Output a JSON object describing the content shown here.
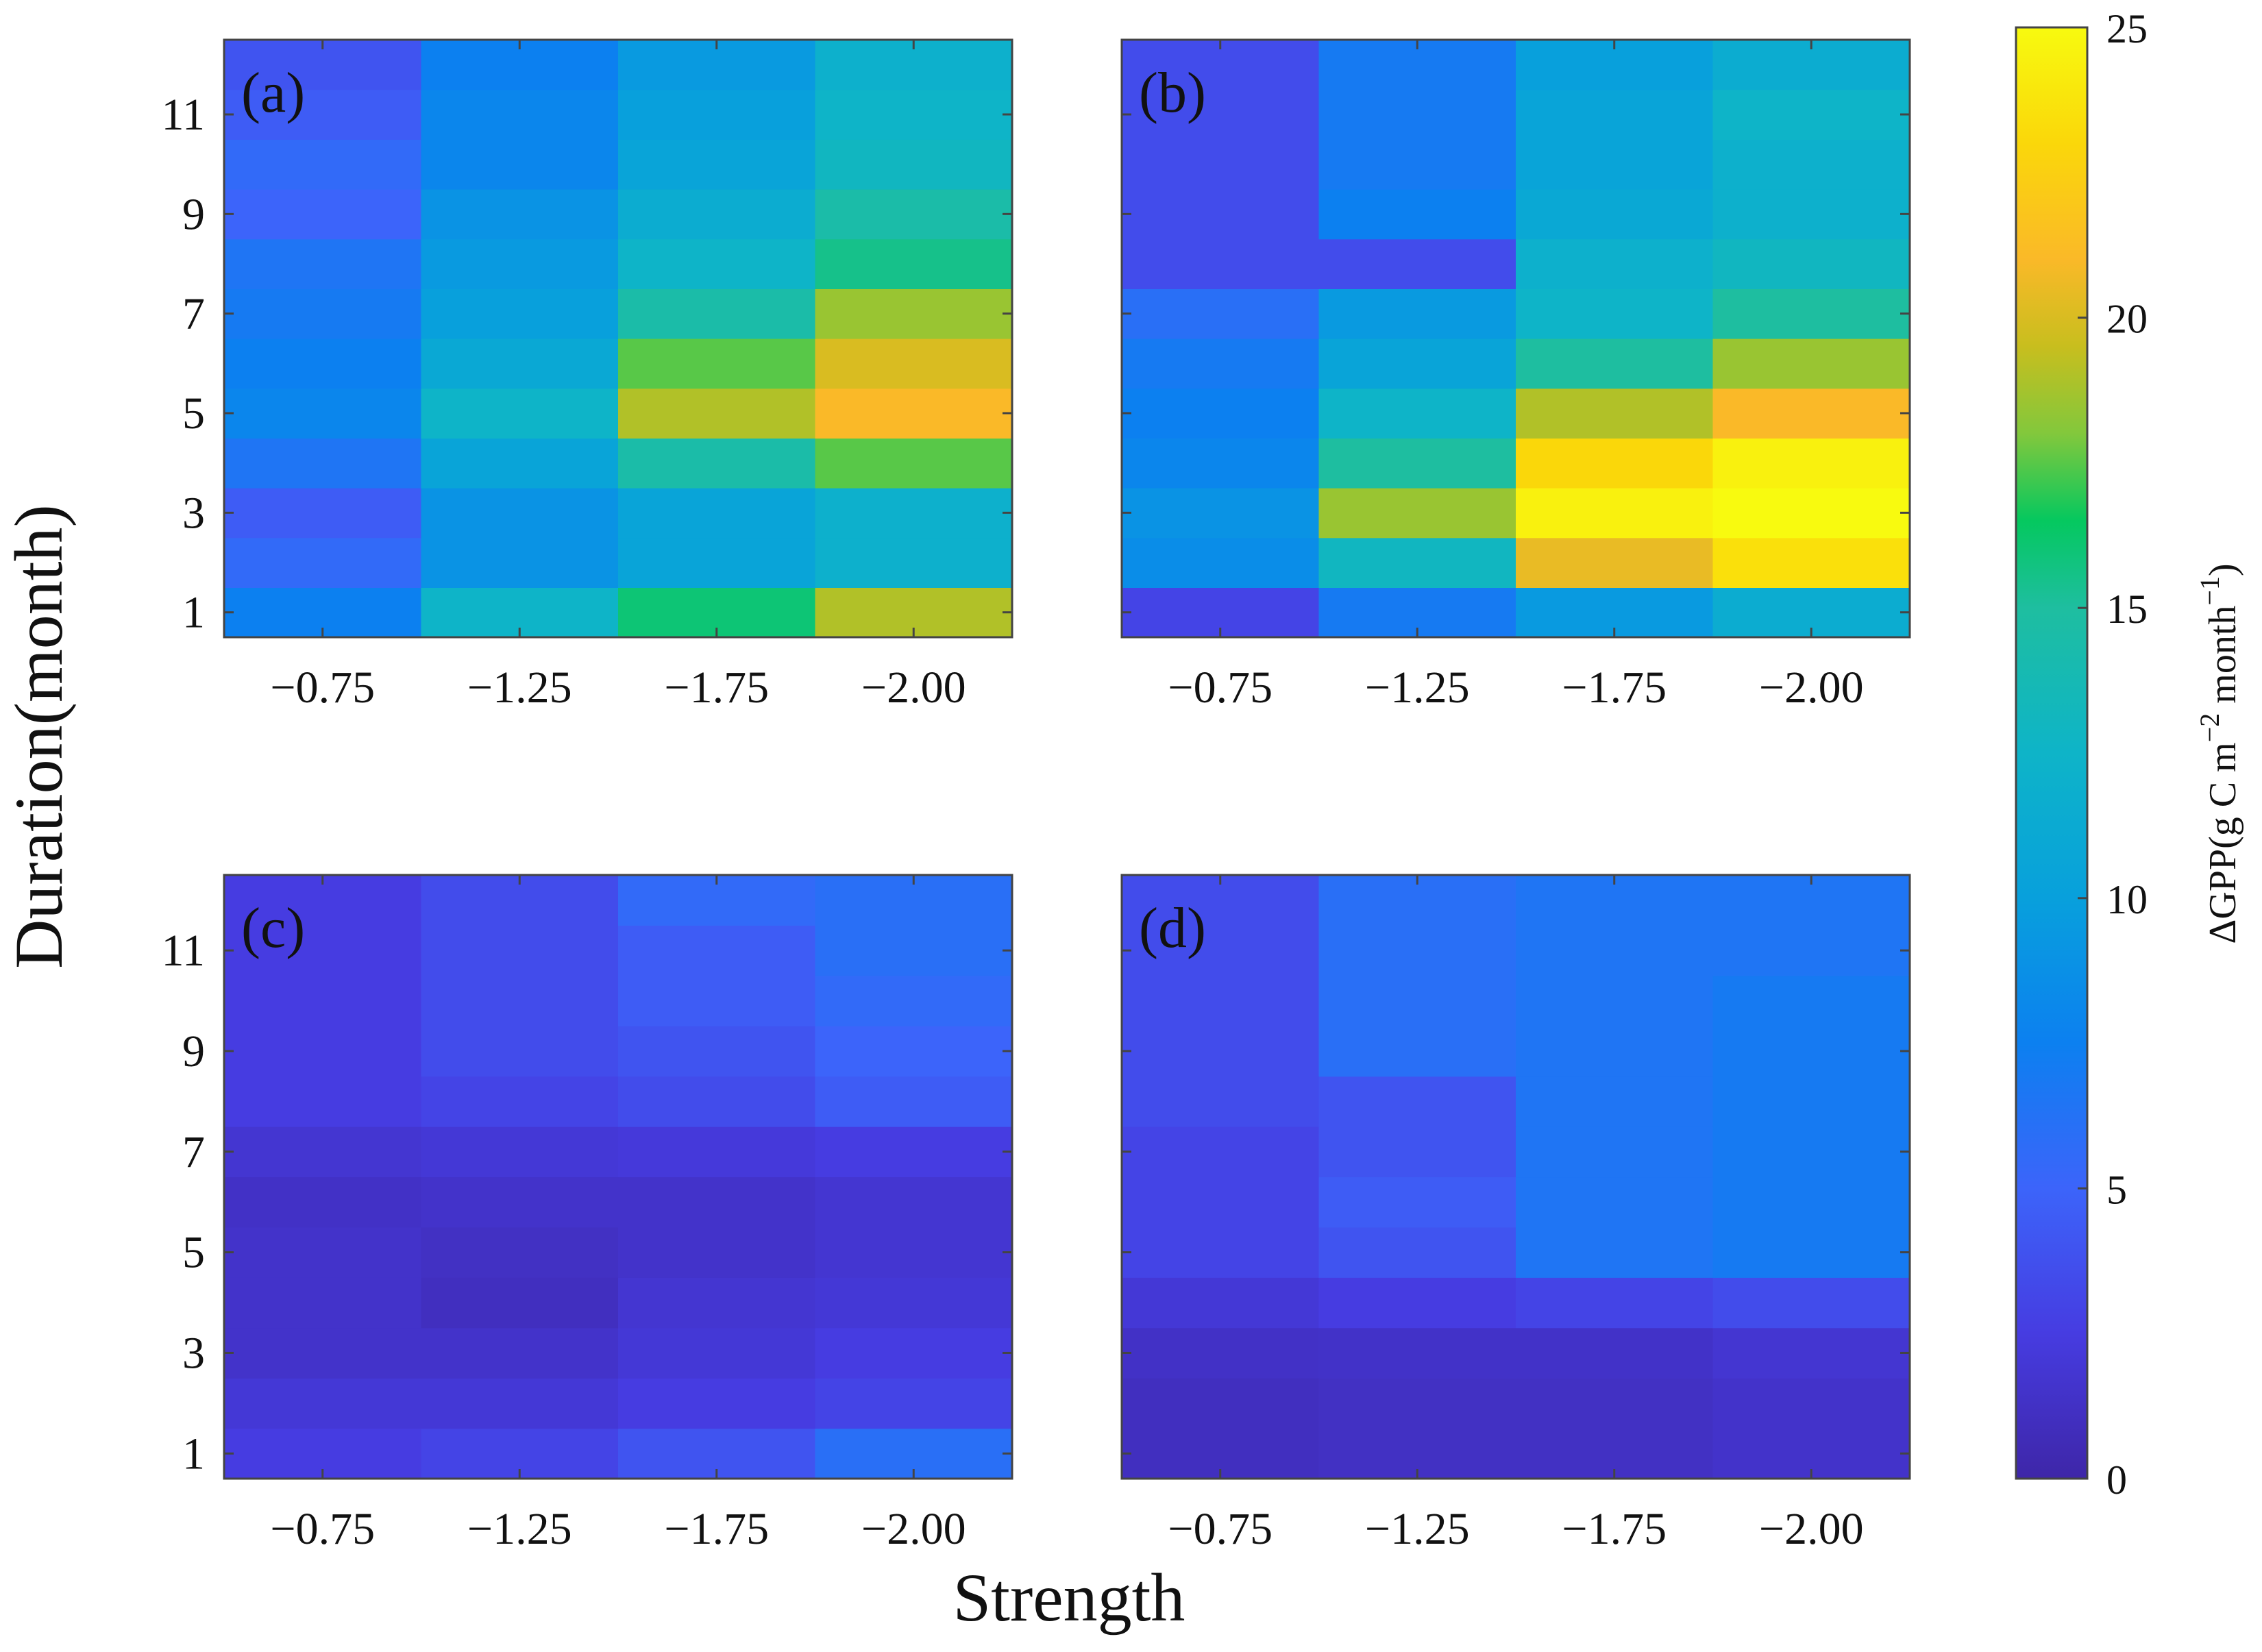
{
  "chart_data": {
    "type": "heatmap",
    "xlabel": "Strength",
    "ylabel": "Duration(month)",
    "x_categories": [
      "−0.75",
      "−1.25",
      "−1.75",
      "−2.00"
    ],
    "y_values": [
      1,
      2,
      3,
      4,
      5,
      6,
      7,
      8,
      9,
      10,
      11,
      12
    ],
    "y_ticks": [
      "1",
      "3",
      "5",
      "7",
      "9",
      "11"
    ],
    "colorbar": {
      "label_main": "ΔGPP(g C m",
      "label_sup1": "−2",
      "label_mid": " month",
      "label_sup2": "−1",
      "label_end": ")",
      "range": [
        0,
        25
      ],
      "ticks": [
        "0",
        "5",
        "10",
        "15",
        "20",
        "25"
      ],
      "colormap": "parula"
    },
    "panels": [
      {
        "label": "(a)",
        "values": [
          [
            7.5,
            12.5,
            16.0,
            19.0
          ],
          [
            5.5,
            9.0,
            10.5,
            12.0
          ],
          [
            4.5,
            9.0,
            10.5,
            12.0
          ],
          [
            6.5,
            10.5,
            14.5,
            17.5
          ],
          [
            8.0,
            12.5,
            19.0,
            21.0
          ],
          [
            7.5,
            11.0,
            17.5,
            20.0
          ],
          [
            7.0,
            10.0,
            14.5,
            18.5
          ],
          [
            6.5,
            9.5,
            12.5,
            15.5
          ],
          [
            5.0,
            9.0,
            11.5,
            14.5
          ],
          [
            5.5,
            8.0,
            10.5,
            13.0
          ],
          [
            4.5,
            8.0,
            10.0,
            12.5
          ],
          [
            4.0,
            7.5,
            9.5,
            12.0
          ]
        ]
      },
      {
        "label": "(b)",
        "values": [
          [
            3.0,
            7.0,
            9.5,
            11.5
          ],
          [
            8.5,
            13.0,
            20.5,
            23.5
          ],
          [
            9.0,
            18.5,
            24.5,
            25.0
          ],
          [
            8.0,
            15.0,
            23.0,
            24.5
          ],
          [
            7.5,
            12.5,
            19.0,
            21.0
          ],
          [
            7.0,
            10.5,
            15.0,
            18.5
          ],
          [
            6.0,
            9.5,
            12.5,
            15.0
          ],
          [
            3.5,
            3.5,
            12.0,
            13.0
          ],
          [
            3.5,
            7.5,
            11.0,
            12.0
          ],
          [
            3.5,
            7.0,
            10.5,
            12.0
          ],
          [
            3.5,
            7.0,
            10.5,
            12.5
          ],
          [
            3.5,
            7.0,
            10.0,
            11.5
          ]
        ]
      },
      {
        "label": "(c)",
        "values": [
          [
            2.5,
            3.0,
            4.0,
            6.0
          ],
          [
            2.0,
            2.0,
            2.5,
            3.0
          ],
          [
            1.5,
            1.5,
            2.0,
            2.5
          ],
          [
            1.5,
            1.0,
            1.8,
            2.0
          ],
          [
            1.5,
            1.2,
            1.5,
            1.8
          ],
          [
            1.3,
            1.5,
            1.5,
            1.8
          ],
          [
            1.8,
            2.0,
            2.2,
            2.5
          ],
          [
            2.5,
            3.0,
            3.5,
            4.5
          ],
          [
            2.5,
            3.5,
            4.0,
            5.0
          ],
          [
            2.5,
            3.5,
            4.5,
            5.5
          ],
          [
            2.5,
            3.5,
            4.5,
            6.0
          ],
          [
            2.5,
            3.5,
            5.5,
            6.0
          ]
        ]
      },
      {
        "label": "(d)",
        "values": [
          [
            1.0,
            1.2,
            1.2,
            1.5
          ],
          [
            1.0,
            1.2,
            1.2,
            1.5
          ],
          [
            1.3,
            1.4,
            1.4,
            1.8
          ],
          [
            2.0,
            2.5,
            3.0,
            3.5
          ],
          [
            3.0,
            4.0,
            6.5,
            7.0
          ],
          [
            3.0,
            4.5,
            6.5,
            7.0
          ],
          [
            3.0,
            4.0,
            6.5,
            7.0
          ],
          [
            3.5,
            4.0,
            6.5,
            7.0
          ],
          [
            3.5,
            6.0,
            6.5,
            7.0
          ],
          [
            3.5,
            6.0,
            6.5,
            7.0
          ],
          [
            3.5,
            6.0,
            6.5,
            6.5
          ],
          [
            3.5,
            6.0,
            6.5,
            6.5
          ]
        ]
      }
    ]
  }
}
